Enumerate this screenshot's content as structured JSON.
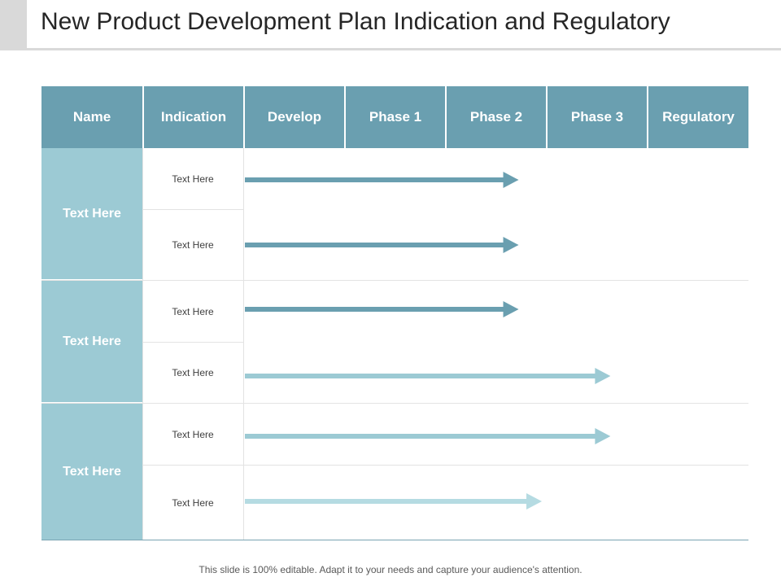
{
  "title": "New Product Development Plan Indication and Regulatory",
  "footer": "This slide is 100% editable. Adapt it to your needs and capture your audience's attention.",
  "columns": [
    "Name",
    "Indication",
    "Develop",
    "Phase 1",
    "Phase 2",
    "Phase 3",
    "Regulatory"
  ],
  "groups": [
    {
      "name": "Text Here"
    },
    {
      "name": "Text Here"
    },
    {
      "name": "Text Here"
    }
  ],
  "rows": [
    {
      "indication": "Text Here",
      "progress_end_column": "Phase 2",
      "progress_fraction_of_column": 0.73,
      "color": "#6a9fb0"
    },
    {
      "indication": "Text Here",
      "progress_end_column": "Phase 2",
      "progress_fraction_of_column": 0.73,
      "color": "#6a9fb0"
    },
    {
      "indication": "Text Here",
      "progress_end_column": "Phase 2",
      "progress_fraction_of_column": 0.73,
      "color": "#6a9fb0"
    },
    {
      "indication": "Text Here",
      "progress_end_column": "Phase 3",
      "progress_fraction_of_column": 0.64,
      "color": "#9ccad4"
    },
    {
      "indication": "Text Here",
      "progress_end_column": "Phase 3",
      "progress_fraction_of_column": 0.64,
      "color": "#9ccad4"
    },
    {
      "indication": "Text Here",
      "progress_end_column": "Phase 2",
      "progress_fraction_of_column": 0.96,
      "color": "#b5dbe2"
    }
  ],
  "colors": {
    "header_bg": "#6a9fb0",
    "name_bg": "#9ccad4",
    "arrow_dark": "#6a9fb0",
    "arrow_light": "#9ccad4",
    "arrow_pale": "#b5dbe2"
  }
}
